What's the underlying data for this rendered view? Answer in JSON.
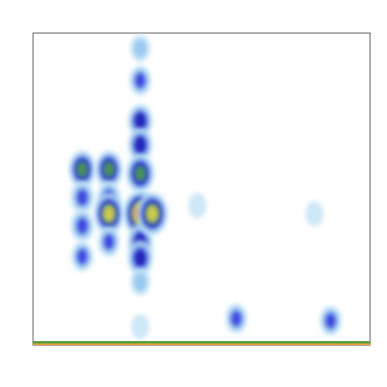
{
  "chart_data": {
    "type": "heatmap",
    "xlim": [
      0,
      100
    ],
    "ylim": [
      0,
      100
    ],
    "x": [
      14.6,
      14.6,
      14.6,
      14.6,
      22.5,
      22.5,
      22.5,
      22.5,
      31.8,
      31.8,
      31.8,
      31.8,
      31.8,
      31.8,
      31.8,
      31.8,
      31.8,
      31.8,
      35.4,
      60.3,
      88.3,
      48.8,
      83.5
    ],
    "y": [
      56.3,
      47.3,
      38.2,
      28.4,
      56.3,
      47.3,
      42.1,
      33.1,
      95.1,
      84.8,
      71.8,
      64.1,
      55.0,
      42.1,
      33.1,
      27.9,
      20.2,
      5.9,
      42.1,
      8.5,
      7.8,
      44.7,
      42.1
    ],
    "values": [
      0.6,
      0.4,
      0.4,
      0.3,
      0.6,
      0.4,
      0.75,
      0.3,
      0.2,
      0.3,
      0.45,
      0.45,
      0.65,
      0.95,
      0.5,
      0.5,
      0.2,
      0.1,
      0.8,
      0.3,
      0.3,
      0.1,
      0.1
    ],
    "colorscale": [
      "#c4e4f6",
      "#8fc4ee",
      "#3434e0",
      "#2222b0",
      "#4ea63c",
      "#e6d64a",
      "#f0683e"
    ]
  }
}
